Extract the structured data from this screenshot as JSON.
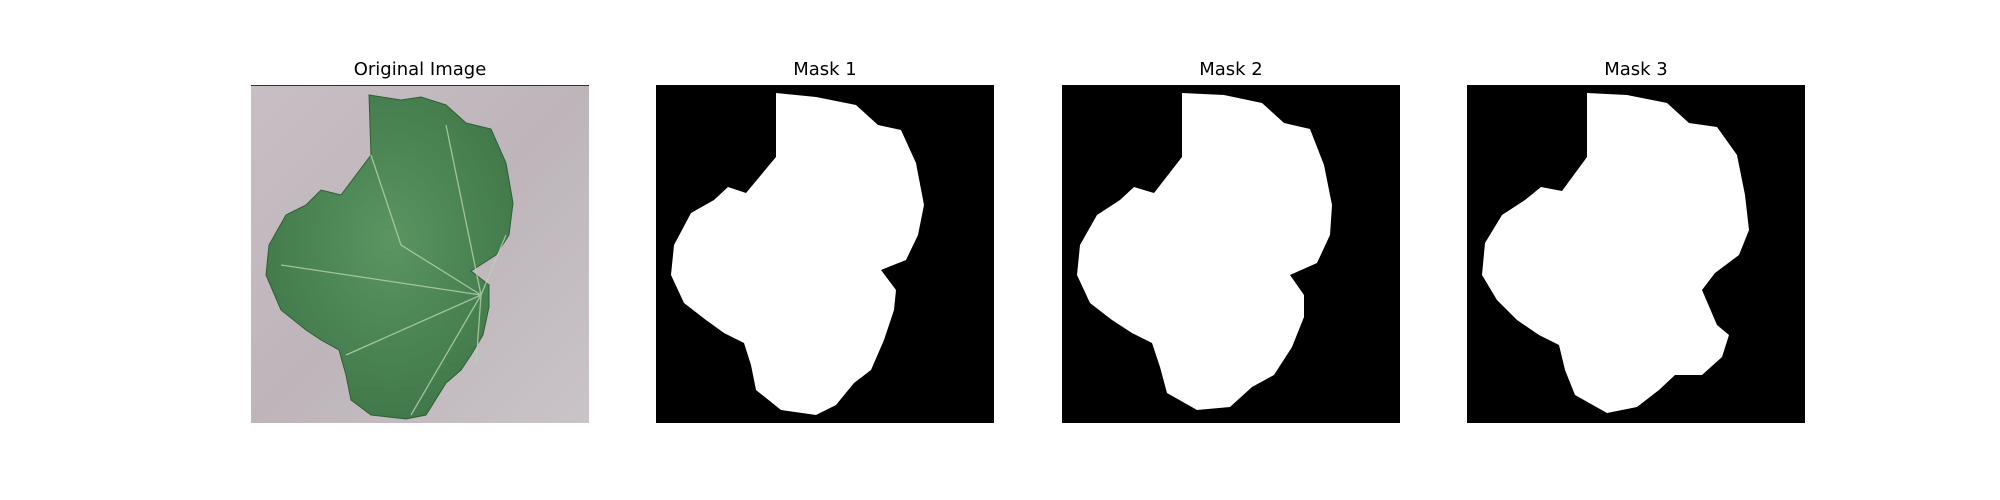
{
  "panels": [
    {
      "title": "Original Image",
      "content": "leaf-photo"
    },
    {
      "title": "Mask 1",
      "content": "binary-mask"
    },
    {
      "title": "Mask 2",
      "content": "binary-mask"
    },
    {
      "title": "Mask 3",
      "content": "binary-mask"
    }
  ],
  "colors": {
    "background": "#c3bbc0",
    "leaf": "#4f8a58",
    "leaf_dark": "#3d7345",
    "vein": "#b6d2b0",
    "mask_bg": "#000000",
    "mask_fg": "#ffffff"
  }
}
